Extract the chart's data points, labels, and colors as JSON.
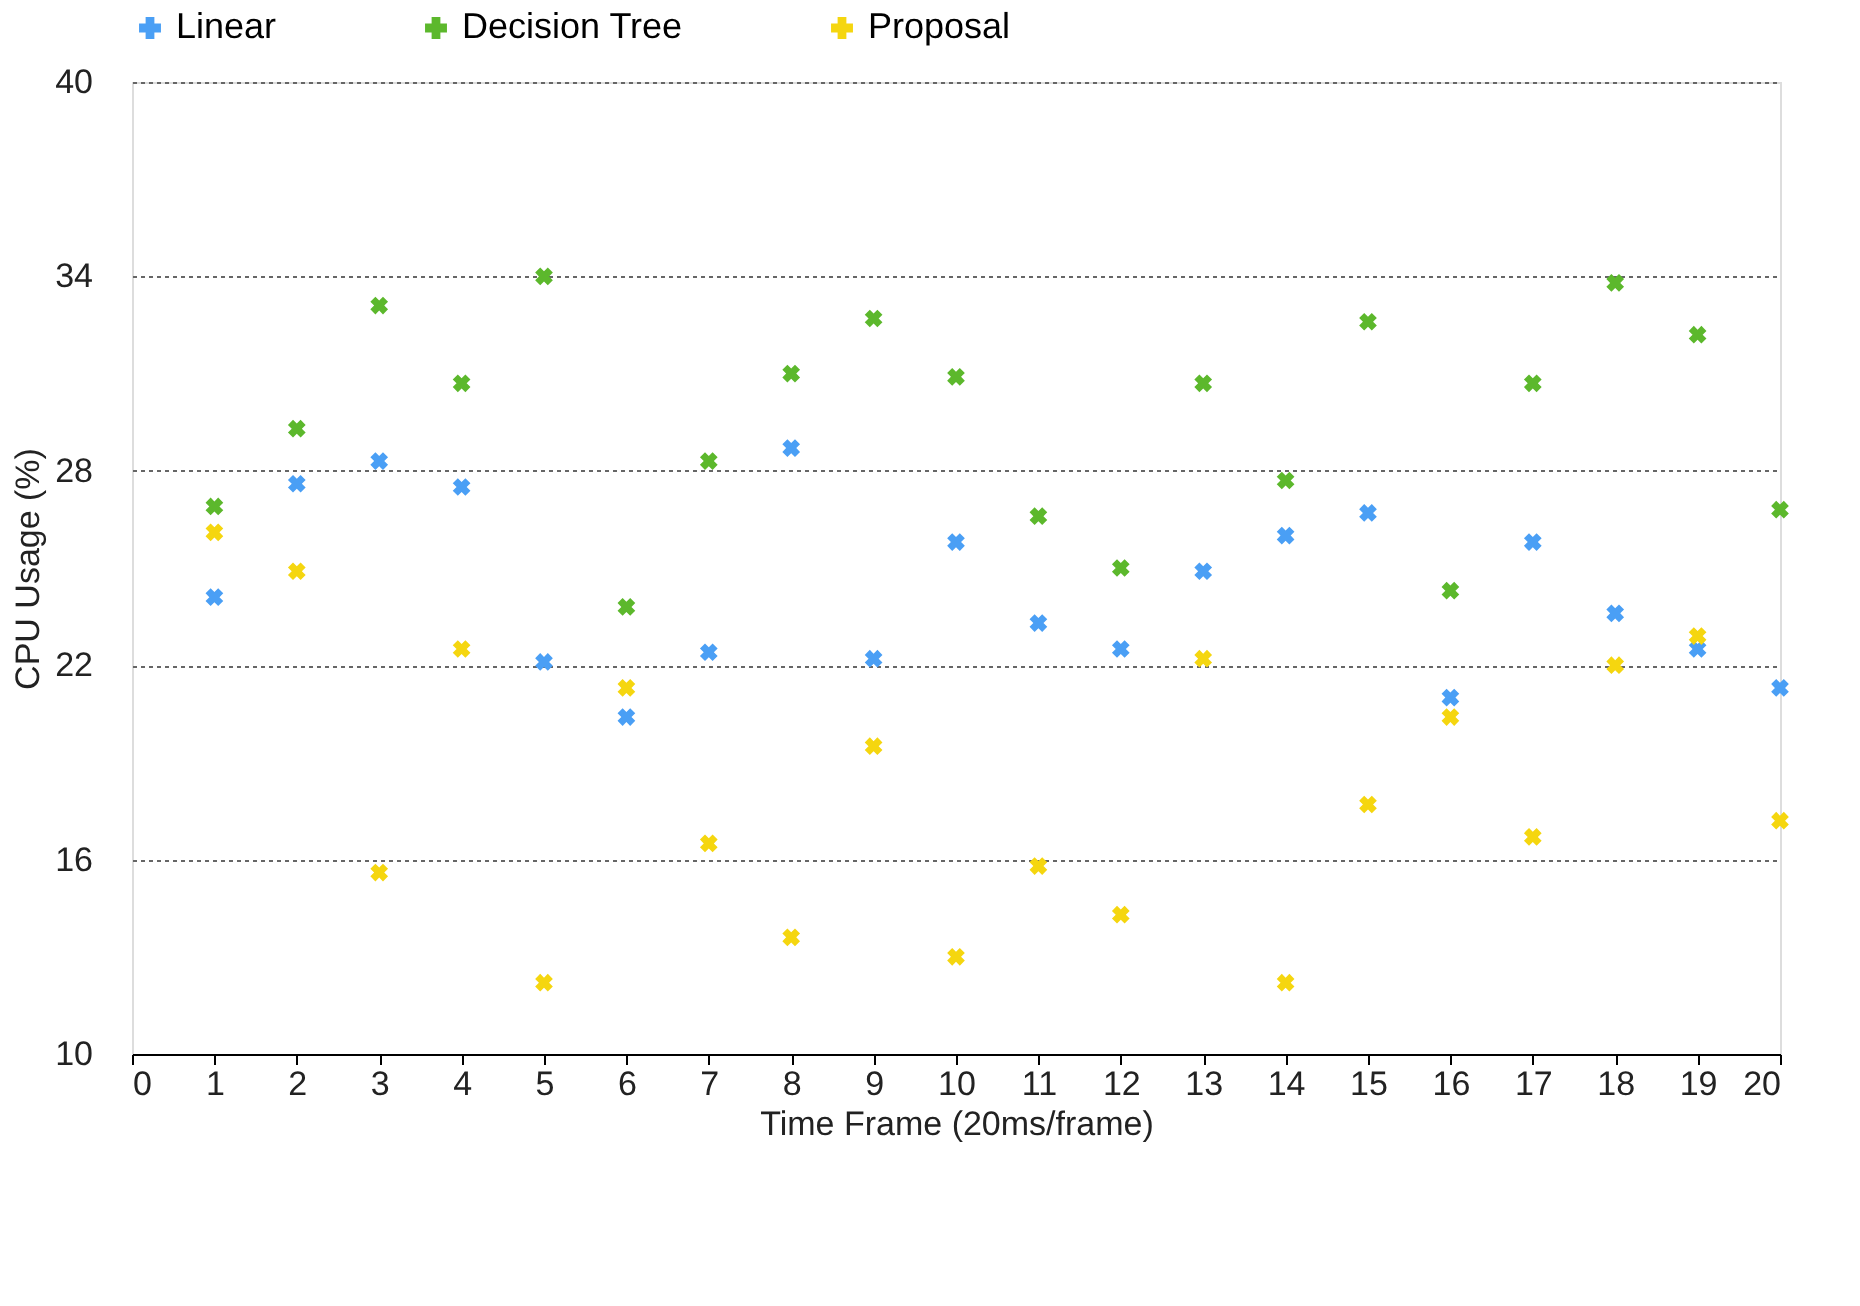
{
  "chart_data": {
    "type": "scatter",
    "xlabel": "Time Frame (20ms/frame)",
    "ylabel": "CPU Usage (%)",
    "x": [
      1,
      2,
      3,
      4,
      5,
      6,
      7,
      8,
      9,
      10,
      11,
      12,
      13,
      14,
      15,
      16,
      17,
      18,
      19,
      20
    ],
    "series": [
      {
        "name": "Linear",
        "color": "#4a9ff5",
        "values": [
          24.1,
          27.6,
          28.3,
          27.5,
          22.1,
          20.4,
          22.4,
          28.7,
          22.2,
          25.8,
          23.3,
          22.5,
          24.9,
          26.0,
          26.7,
          21.0,
          25.8,
          23.6,
          22.5,
          21.3
        ]
      },
      {
        "name": "Decision Tree",
        "color": "#5cb82c",
        "values": [
          26.9,
          29.3,
          33.1,
          30.7,
          34.0,
          23.8,
          28.3,
          31.0,
          32.7,
          30.9,
          26.6,
          25.0,
          30.7,
          27.7,
          32.6,
          24.3,
          30.7,
          33.8,
          32.2,
          26.8
        ]
      },
      {
        "name": "Proposal",
        "color": "#f5d60f",
        "values": [
          26.1,
          24.9,
          15.6,
          22.5,
          12.2,
          21.3,
          16.5,
          13.6,
          19.5,
          13.0,
          15.8,
          14.3,
          22.2,
          12.2,
          17.7,
          20.4,
          16.7,
          22.0,
          22.9,
          17.2
        ]
      }
    ],
    "xlim": [
      0,
      20
    ],
    "xticks": [
      0,
      1,
      2,
      3,
      4,
      5,
      6,
      7,
      8,
      9,
      10,
      11,
      12,
      13,
      14,
      15,
      16,
      17,
      18,
      19,
      20
    ],
    "ylim": [
      10,
      40
    ],
    "yticks": [
      10,
      16,
      22,
      28,
      34,
      40
    ],
    "grid": "y",
    "legend": "top",
    "marker": "cross"
  }
}
